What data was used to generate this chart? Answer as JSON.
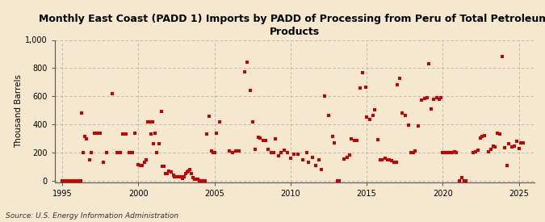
{
  "title": "Monthly East Coast (PADD 1) Imports by PADD of Processing from Peru of Total Petroleum\nProducts",
  "ylabel": "Thousand Barrels",
  "source": "Source: U.S. Energy Information Administration",
  "background_color": "#f5e8ce",
  "plot_bg_color": "#f5e8ce",
  "marker_color": "#cc0000",
  "marker_size": 5,
  "xlim": [
    1994.5,
    2026.0
  ],
  "ylim": [
    -10,
    1000
  ],
  "yticks": [
    0,
    200,
    400,
    600,
    800,
    1000
  ],
  "xticks": [
    1995,
    2000,
    2005,
    2010,
    2015,
    2020,
    2025
  ],
  "data_points": [
    [
      1995.0,
      0
    ],
    [
      1995.1,
      0
    ],
    [
      1995.2,
      0
    ],
    [
      1995.3,
      0
    ],
    [
      1995.4,
      0
    ],
    [
      1995.5,
      0
    ],
    [
      1995.6,
      0
    ],
    [
      1995.7,
      0
    ],
    [
      1995.8,
      0
    ],
    [
      1995.9,
      0
    ],
    [
      1996.0,
      0
    ],
    [
      1996.1,
      0
    ],
    [
      1996.2,
      0
    ],
    [
      1996.3,
      480
    ],
    [
      1996.4,
      200
    ],
    [
      1996.5,
      315
    ],
    [
      1996.6,
      295
    ],
    [
      1996.8,
      145
    ],
    [
      1996.9,
      200
    ],
    [
      1997.1,
      335
    ],
    [
      1997.3,
      340
    ],
    [
      1997.5,
      340
    ],
    [
      1997.7,
      130
    ],
    [
      1997.9,
      200
    ],
    [
      1998.3,
      620
    ],
    [
      1998.6,
      200
    ],
    [
      1998.8,
      200
    ],
    [
      1999.0,
      330
    ],
    [
      1999.2,
      330
    ],
    [
      1999.4,
      200
    ],
    [
      1999.6,
      200
    ],
    [
      1999.8,
      340
    ],
    [
      2000.0,
      115
    ],
    [
      2000.15,
      110
    ],
    [
      2000.25,
      110
    ],
    [
      2000.4,
      130
    ],
    [
      2000.5,
      150
    ],
    [
      2000.6,
      415
    ],
    [
      2000.75,
      420
    ],
    [
      2000.85,
      330
    ],
    [
      2000.95,
      415
    ],
    [
      2001.0,
      265
    ],
    [
      2001.1,
      340
    ],
    [
      2001.2,
      200
    ],
    [
      2001.35,
      265
    ],
    [
      2001.5,
      490
    ],
    [
      2001.6,
      100
    ],
    [
      2001.7,
      100
    ],
    [
      2001.8,
      50
    ],
    [
      2001.9,
      50
    ],
    [
      2002.0,
      70
    ],
    [
      2002.15,
      60
    ],
    [
      2002.3,
      40
    ],
    [
      2002.4,
      30
    ],
    [
      2002.5,
      30
    ],
    [
      2002.6,
      30
    ],
    [
      2002.7,
      30
    ],
    [
      2002.8,
      30
    ],
    [
      2002.9,
      15
    ],
    [
      2003.0,
      30
    ],
    [
      2003.1,
      50
    ],
    [
      2003.2,
      60
    ],
    [
      2003.3,
      70
    ],
    [
      2003.4,
      80
    ],
    [
      2003.5,
      50
    ],
    [
      2003.6,
      20
    ],
    [
      2003.7,
      10
    ],
    [
      2003.8,
      10
    ],
    [
      2003.9,
      10
    ],
    [
      2004.0,
      0
    ],
    [
      2004.1,
      0
    ],
    [
      2004.2,
      0
    ],
    [
      2004.3,
      0
    ],
    [
      2004.4,
      0
    ],
    [
      2004.5,
      330
    ],
    [
      2004.65,
      460
    ],
    [
      2004.8,
      210
    ],
    [
      2004.9,
      200
    ],
    [
      2005.0,
      200
    ],
    [
      2005.15,
      340
    ],
    [
      2005.35,
      415
    ],
    [
      2006.0,
      210
    ],
    [
      2006.2,
      200
    ],
    [
      2006.4,
      210
    ],
    [
      2006.6,
      210
    ],
    [
      2007.0,
      775
    ],
    [
      2007.15,
      840
    ],
    [
      2007.35,
      640
    ],
    [
      2007.5,
      420
    ],
    [
      2007.7,
      220
    ],
    [
      2007.9,
      310
    ],
    [
      2008.0,
      305
    ],
    [
      2008.2,
      285
    ],
    [
      2008.35,
      285
    ],
    [
      2008.55,
      220
    ],
    [
      2008.75,
      200
    ],
    [
      2008.9,
      200
    ],
    [
      2009.0,
      295
    ],
    [
      2009.2,
      175
    ],
    [
      2009.4,
      200
    ],
    [
      2009.6,
      215
    ],
    [
      2009.8,
      200
    ],
    [
      2010.0,
      160
    ],
    [
      2010.2,
      190
    ],
    [
      2010.5,
      190
    ],
    [
      2010.8,
      145
    ],
    [
      2011.05,
      200
    ],
    [
      2011.2,
      130
    ],
    [
      2011.45,
      165
    ],
    [
      2011.65,
      105
    ],
    [
      2011.85,
      145
    ],
    [
      2012.0,
      80
    ],
    [
      2012.25,
      600
    ],
    [
      2012.5,
      465
    ],
    [
      2012.75,
      315
    ],
    [
      2012.9,
      270
    ],
    [
      2013.1,
      0
    ],
    [
      2013.2,
      0
    ],
    [
      2013.5,
      155
    ],
    [
      2013.7,
      165
    ],
    [
      2013.9,
      185
    ],
    [
      2014.0,
      295
    ],
    [
      2014.2,
      285
    ],
    [
      2014.35,
      285
    ],
    [
      2014.55,
      660
    ],
    [
      2014.75,
      765
    ],
    [
      2014.95,
      665
    ],
    [
      2015.0,
      450
    ],
    [
      2015.2,
      435
    ],
    [
      2015.4,
      465
    ],
    [
      2015.55,
      505
    ],
    [
      2015.75,
      290
    ],
    [
      2015.9,
      150
    ],
    [
      2016.0,
      150
    ],
    [
      2016.2,
      160
    ],
    [
      2016.35,
      145
    ],
    [
      2016.5,
      145
    ],
    [
      2016.65,
      140
    ],
    [
      2016.8,
      130
    ],
    [
      2016.95,
      130
    ],
    [
      2017.0,
      680
    ],
    [
      2017.15,
      730
    ],
    [
      2017.35,
      480
    ],
    [
      2017.55,
      465
    ],
    [
      2017.75,
      395
    ],
    [
      2017.9,
      200
    ],
    [
      2018.05,
      200
    ],
    [
      2018.2,
      210
    ],
    [
      2018.4,
      390
    ],
    [
      2018.6,
      570
    ],
    [
      2018.8,
      585
    ],
    [
      2018.95,
      590
    ],
    [
      2019.1,
      830
    ],
    [
      2019.25,
      510
    ],
    [
      2019.4,
      580
    ],
    [
      2019.6,
      590
    ],
    [
      2019.75,
      580
    ],
    [
      2019.9,
      590
    ],
    [
      2020.0,
      200
    ],
    [
      2020.2,
      200
    ],
    [
      2020.4,
      200
    ],
    [
      2020.6,
      200
    ],
    [
      2020.75,
      205
    ],
    [
      2020.9,
      200
    ],
    [
      2021.1,
      0
    ],
    [
      2021.25,
      20
    ],
    [
      2021.4,
      0
    ],
    [
      2021.5,
      0
    ],
    [
      2022.0,
      200
    ],
    [
      2022.15,
      205
    ],
    [
      2022.3,
      215
    ],
    [
      2022.45,
      305
    ],
    [
      2022.6,
      315
    ],
    [
      2022.75,
      320
    ],
    [
      2023.0,
      205
    ],
    [
      2023.15,
      225
    ],
    [
      2023.3,
      245
    ],
    [
      2023.45,
      240
    ],
    [
      2023.6,
      335
    ],
    [
      2023.75,
      330
    ],
    [
      2023.9,
      880
    ],
    [
      2024.05,
      235
    ],
    [
      2024.2,
      105
    ],
    [
      2024.35,
      260
    ],
    [
      2024.55,
      240
    ],
    [
      2024.7,
      245
    ],
    [
      2024.85,
      280
    ],
    [
      2025.0,
      230
    ],
    [
      2025.15,
      270
    ],
    [
      2025.3,
      270
    ]
  ]
}
